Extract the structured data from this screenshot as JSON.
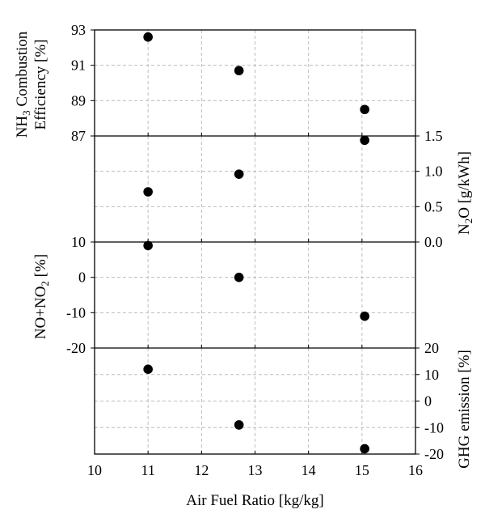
{
  "chart_data": [
    {
      "type": "scatter",
      "panel": "nh3-combustion-efficiency",
      "ylabel": "NH3 Combustion Efficiency [%]",
      "ylabel_main": "NH",
      "ylabel_sub": "3",
      "ylabel_rest": " Combustion",
      "ylabel_line2": "Efficiency [%]",
      "axis_side": "left",
      "ylim": [
        87,
        93
      ],
      "yticks": [
        "87",
        "89",
        "91",
        "93"
      ],
      "grid": true,
      "x": [
        11.0,
        12.7,
        15.05
      ],
      "y": [
        92.6,
        90.7,
        88.5
      ]
    },
    {
      "type": "scatter",
      "panel": "n2o",
      "ylabel": "N2O [g/kWh]",
      "ylabel_main": "N",
      "ylabel_sub": "2",
      "ylabel_rest": "O [g/kWh]",
      "axis_side": "right",
      "ylim": [
        0,
        1.5
      ],
      "yticks": [
        "0.0",
        "0.5",
        "1.0",
        "1.5"
      ],
      "grid": true,
      "x": [
        11.0,
        12.7,
        15.05
      ],
      "y": [
        0.71,
        0.96,
        1.44
      ]
    },
    {
      "type": "scatter",
      "panel": "no-no2",
      "ylabel": "NO+NO2 [%]",
      "ylabel_main": "NO+NO",
      "ylabel_sub": "2",
      "ylabel_rest": " [%]",
      "axis_side": "left",
      "ylim": [
        -20,
        10
      ],
      "yticks": [
        "-20",
        "-10",
        "0",
        "10"
      ],
      "grid": true,
      "x": [
        11.0,
        12.7,
        15.05
      ],
      "y": [
        9.0,
        0.0,
        -11.0
      ]
    },
    {
      "type": "scatter",
      "panel": "ghg-emission",
      "ylabel": "GHG emission [%]",
      "axis_side": "right",
      "ylim": [
        -20,
        20
      ],
      "yticks": [
        "-20",
        "-10",
        "0",
        "10",
        "20"
      ],
      "grid": true,
      "x": [
        11.0,
        12.7,
        15.05
      ],
      "y": [
        12.0,
        -9.0,
        -18.0
      ]
    }
  ],
  "x_axis": {
    "label": "Air Fuel Ratio [kg/kg]",
    "xlim": [
      10,
      16
    ],
    "ticks": [
      "10",
      "11",
      "12",
      "13",
      "14",
      "15",
      "16"
    ]
  }
}
